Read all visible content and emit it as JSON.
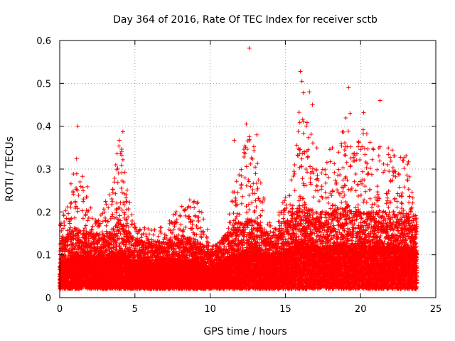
{
  "chart_data": {
    "type": "scatter",
    "title": "Day 364 of 2016, Rate Of TEC Index for receiver sctb",
    "xlabel": "GPS time / hours",
    "ylabel": "ROTI / TECUs",
    "xlim": [
      0,
      25
    ],
    "ylim": [
      0,
      0.6
    ],
    "xticks": [
      0,
      5,
      10,
      15,
      20,
      25
    ],
    "yticks": [
      0,
      0.1,
      0.2,
      0.3,
      0.4,
      0.5,
      0.6
    ],
    "grid": true,
    "marker": "+",
    "color": "#ff0000",
    "series": [
      {
        "name": "ROTI",
        "x_range": [
          0,
          23.75
        ],
        "points_per_hour": 720,
        "baseline_profile": [
          [
            0.0,
            0.06
          ],
          [
            1.0,
            0.08
          ],
          [
            2.0,
            0.075
          ],
          [
            3.0,
            0.07
          ],
          [
            4.0,
            0.09
          ],
          [
            5.0,
            0.065
          ],
          [
            6.0,
            0.06
          ],
          [
            7.0,
            0.065
          ],
          [
            8.0,
            0.07
          ],
          [
            9.0,
            0.065
          ],
          [
            10.0,
            0.05
          ],
          [
            11.0,
            0.07
          ],
          [
            12.0,
            0.09
          ],
          [
            13.0,
            0.09
          ],
          [
            14.0,
            0.07
          ],
          [
            15.0,
            0.09
          ],
          [
            16.0,
            0.11
          ],
          [
            17.0,
            0.1
          ],
          [
            18.0,
            0.1
          ],
          [
            19.0,
            0.11
          ],
          [
            20.0,
            0.1
          ],
          [
            21.0,
            0.1
          ],
          [
            22.0,
            0.1
          ],
          [
            23.0,
            0.1
          ],
          [
            23.75,
            0.09
          ]
        ],
        "envelope_profile": [
          [
            0.0,
            0.19
          ],
          [
            0.5,
            0.24
          ],
          [
            1.0,
            0.31
          ],
          [
            1.2,
            0.4
          ],
          [
            1.5,
            0.3
          ],
          [
            2.0,
            0.24
          ],
          [
            2.5,
            0.2
          ],
          [
            3.0,
            0.22
          ],
          [
            3.5,
            0.27
          ],
          [
            3.8,
            0.36
          ],
          [
            4.1,
            0.39
          ],
          [
            4.5,
            0.25
          ],
          [
            5.0,
            0.17
          ],
          [
            6.0,
            0.16
          ],
          [
            7.0,
            0.17
          ],
          [
            8.0,
            0.22
          ],
          [
            8.5,
            0.23
          ],
          [
            9.0,
            0.25
          ],
          [
            9.5,
            0.2
          ],
          [
            10.0,
            0.14
          ],
          [
            10.5,
            0.12
          ],
          [
            11.0,
            0.15
          ],
          [
            11.5,
            0.25
          ],
          [
            12.0,
            0.3
          ],
          [
            12.5,
            0.41
          ],
          [
            13.0,
            0.34
          ],
          [
            13.5,
            0.25
          ],
          [
            14.0,
            0.17
          ],
          [
            14.5,
            0.2
          ],
          [
            15.0,
            0.24
          ],
          [
            15.5,
            0.3
          ],
          [
            16.0,
            0.48
          ],
          [
            16.5,
            0.42
          ],
          [
            17.0,
            0.36
          ],
          [
            17.5,
            0.33
          ],
          [
            18.0,
            0.35
          ],
          [
            18.5,
            0.35
          ],
          [
            19.0,
            0.43
          ],
          [
            19.5,
            0.34
          ],
          [
            20.0,
            0.4
          ],
          [
            20.5,
            0.38
          ],
          [
            21.0,
            0.35
          ],
          [
            21.5,
            0.37
          ],
          [
            22.0,
            0.36
          ],
          [
            22.5,
            0.33
          ],
          [
            23.0,
            0.37
          ],
          [
            23.3,
            0.3
          ],
          [
            23.75,
            0.18
          ]
        ],
        "outliers": [
          [
            12.6,
            0.582
          ],
          [
            16.0,
            0.528
          ],
          [
            16.1,
            0.505
          ],
          [
            16.2,
            0.478
          ],
          [
            16.6,
            0.48
          ],
          [
            16.8,
            0.45
          ],
          [
            19.2,
            0.49
          ],
          [
            19.3,
            0.43
          ],
          [
            20.2,
            0.432
          ],
          [
            21.3,
            0.46
          ],
          [
            1.2,
            0.4
          ],
          [
            4.2,
            0.387
          ],
          [
            12.4,
            0.405
          ],
          [
            13.1,
            0.38
          ],
          [
            11.6,
            0.367
          ]
        ]
      }
    ]
  }
}
